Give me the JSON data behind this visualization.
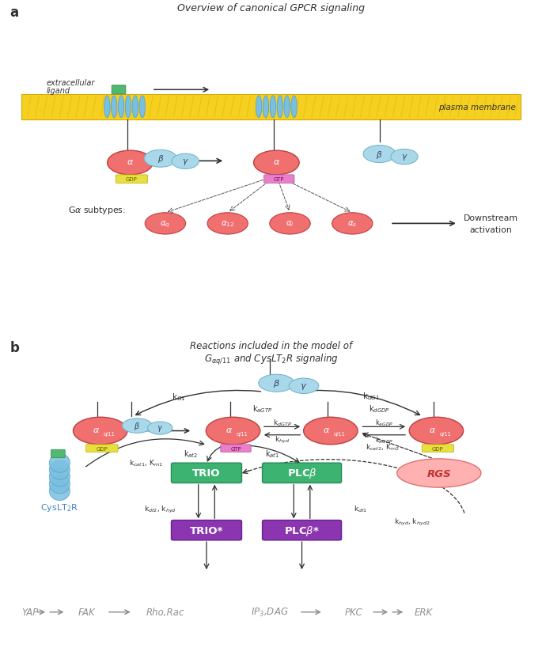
{
  "title_a": "Overview of canonical GPCR signaling",
  "label_a": "a",
  "label_b": "b",
  "membrane_color": "#F5D020",
  "membrane_edge": "#D4A800",
  "alpha_color": "#F07070",
  "alpha_edge": "#C04040",
  "beta_gamma_color": "#A8D8EA",
  "beta_gamma_edge": "#70B0C8",
  "gdp_color": "#E8E040",
  "gdp_edge": "#B8B000",
  "gtp_color": "#E880C8",
  "gtp_edge": "#B050A0",
  "trio_color": "#3CB371",
  "trio_edge": "#2A8A55",
  "trio_active_color": "#8B35B0",
  "trio_active_edge": "#6A2090",
  "plcb_color": "#3CB371",
  "plcb_edge": "#2A8A55",
  "plcb_active_color": "#8B35B0",
  "plcb_active_edge": "#6A2090",
  "rgs_fill": "#FFB0B0",
  "rgs_edge": "#E07070",
  "receptor_color": "#7BBFE0",
  "receptor_edge": "#50A0C8",
  "ligand_color": "#50B870",
  "ligand_edge": "#308850",
  "arrow_color": "#303030",
  "text_color": "#303030",
  "gray_text": "#909090",
  "white": "#FFFFFF"
}
